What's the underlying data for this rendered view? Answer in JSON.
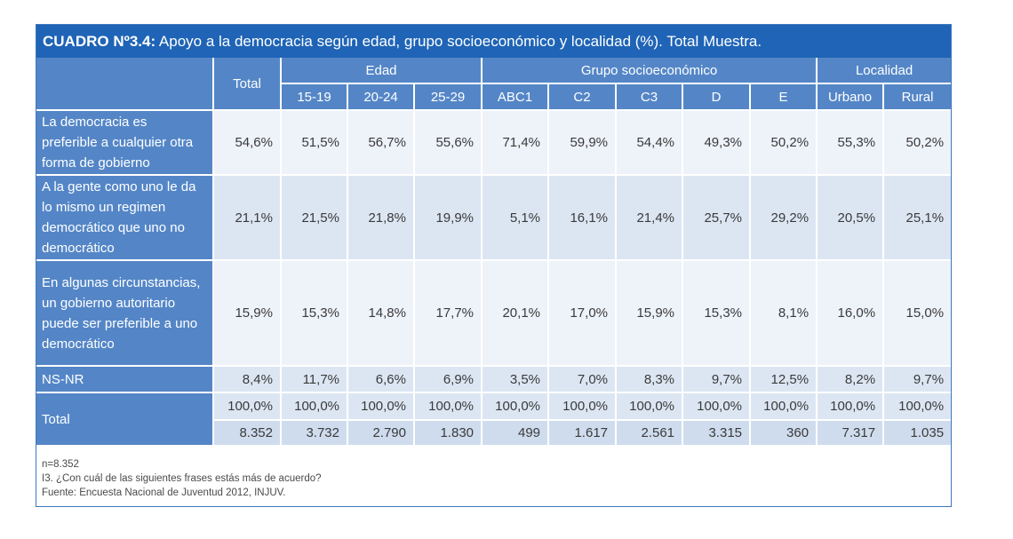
{
  "title": {
    "code": "CUADRO Nº3.4:",
    "text": " Apoyo a la democracia según edad, grupo socioeconómico y localidad (%). Total Muestra."
  },
  "header": {
    "total": "Total",
    "groups": {
      "edad": "Edad",
      "gse": "Grupo socioeconómico",
      "localidad": "Localidad"
    },
    "columns": [
      "15-19",
      "20-24",
      "25-29",
      "ABC1",
      "C2",
      "C3",
      "D",
      "E",
      "Urbano",
      "Rural"
    ]
  },
  "rows": [
    {
      "label": "La democracia es preferible a cualquier otra forma de gobierno",
      "values": [
        "54,6%",
        "51,5%",
        "56,7%",
        "55,6%",
        "71,4%",
        "59,9%",
        "54,4%",
        "49,3%",
        "50,2%",
        "55,3%",
        "50,2%"
      ]
    },
    {
      "label": "A la gente como uno le da lo mismo un regimen democrático que uno no democrático",
      "values": [
        "21,1%",
        "21,5%",
        "21,8%",
        "19,9%",
        "5,1%",
        "16,1%",
        "21,4%",
        "25,7%",
        "29,2%",
        "20,5%",
        "25,1%"
      ]
    },
    {
      "label": "En algunas circunstancias, un gobierno autoritario puede ser preferible a uno democrático",
      "values": [
        "15,9%",
        "15,3%",
        "14,8%",
        "17,7%",
        "20,1%",
        "17,0%",
        "15,9%",
        "15,3%",
        "8,1%",
        "16,0%",
        "15,0%"
      ]
    },
    {
      "label": "NS-NR",
      "values": [
        "8,4%",
        "11,7%",
        "6,6%",
        "6,9%",
        "3,5%",
        "7,0%",
        "8,3%",
        "9,7%",
        "12,5%",
        "8,2%",
        "9,7%"
      ]
    }
  ],
  "total_row": {
    "label": "Total",
    "percent": [
      "100,0%",
      "100,0%",
      "100,0%",
      "100,0%",
      "100,0%",
      "100,0%",
      "100,0%",
      "100,0%",
      "100,0%",
      "100,0%",
      "100,0%"
    ],
    "counts": [
      "8.352",
      "3.732",
      "2.790",
      "1.830",
      "499",
      "1.617",
      "2.561",
      "3.315",
      "360",
      "7.317",
      "1.035"
    ]
  },
  "notes": [
    "n=8.352",
    "I3. ¿Con cuál de las siguientes frases estás más de acuerdo?",
    "Fuente: Encuesta Nacional de Juventud 2012, INJUV."
  ]
}
